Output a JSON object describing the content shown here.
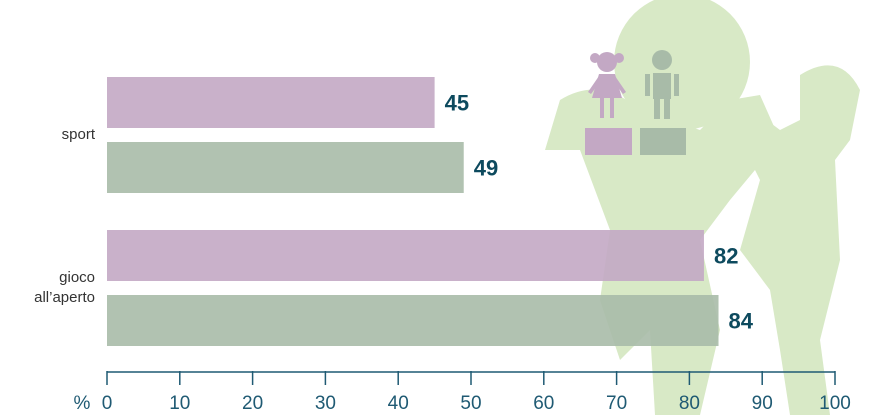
{
  "chart_data": {
    "type": "bar",
    "orientation": "horizontal",
    "categories": [
      "sport",
      "gioco all’aperto"
    ],
    "series": [
      {
        "color": "#c3a8c4",
        "values": [
          45,
          82
        ]
      },
      {
        "color": "#a8bba8",
        "values": [
          49,
          84
        ]
      }
    ],
    "x_label": "%",
    "xlim": [
      0,
      100
    ],
    "xticks": [
      0,
      10,
      20,
      30,
      40,
      50,
      60,
      70,
      80,
      90,
      100
    ],
    "value_label_color": "#0d4a5e",
    "axis_color": "#1f5a73"
  }
}
